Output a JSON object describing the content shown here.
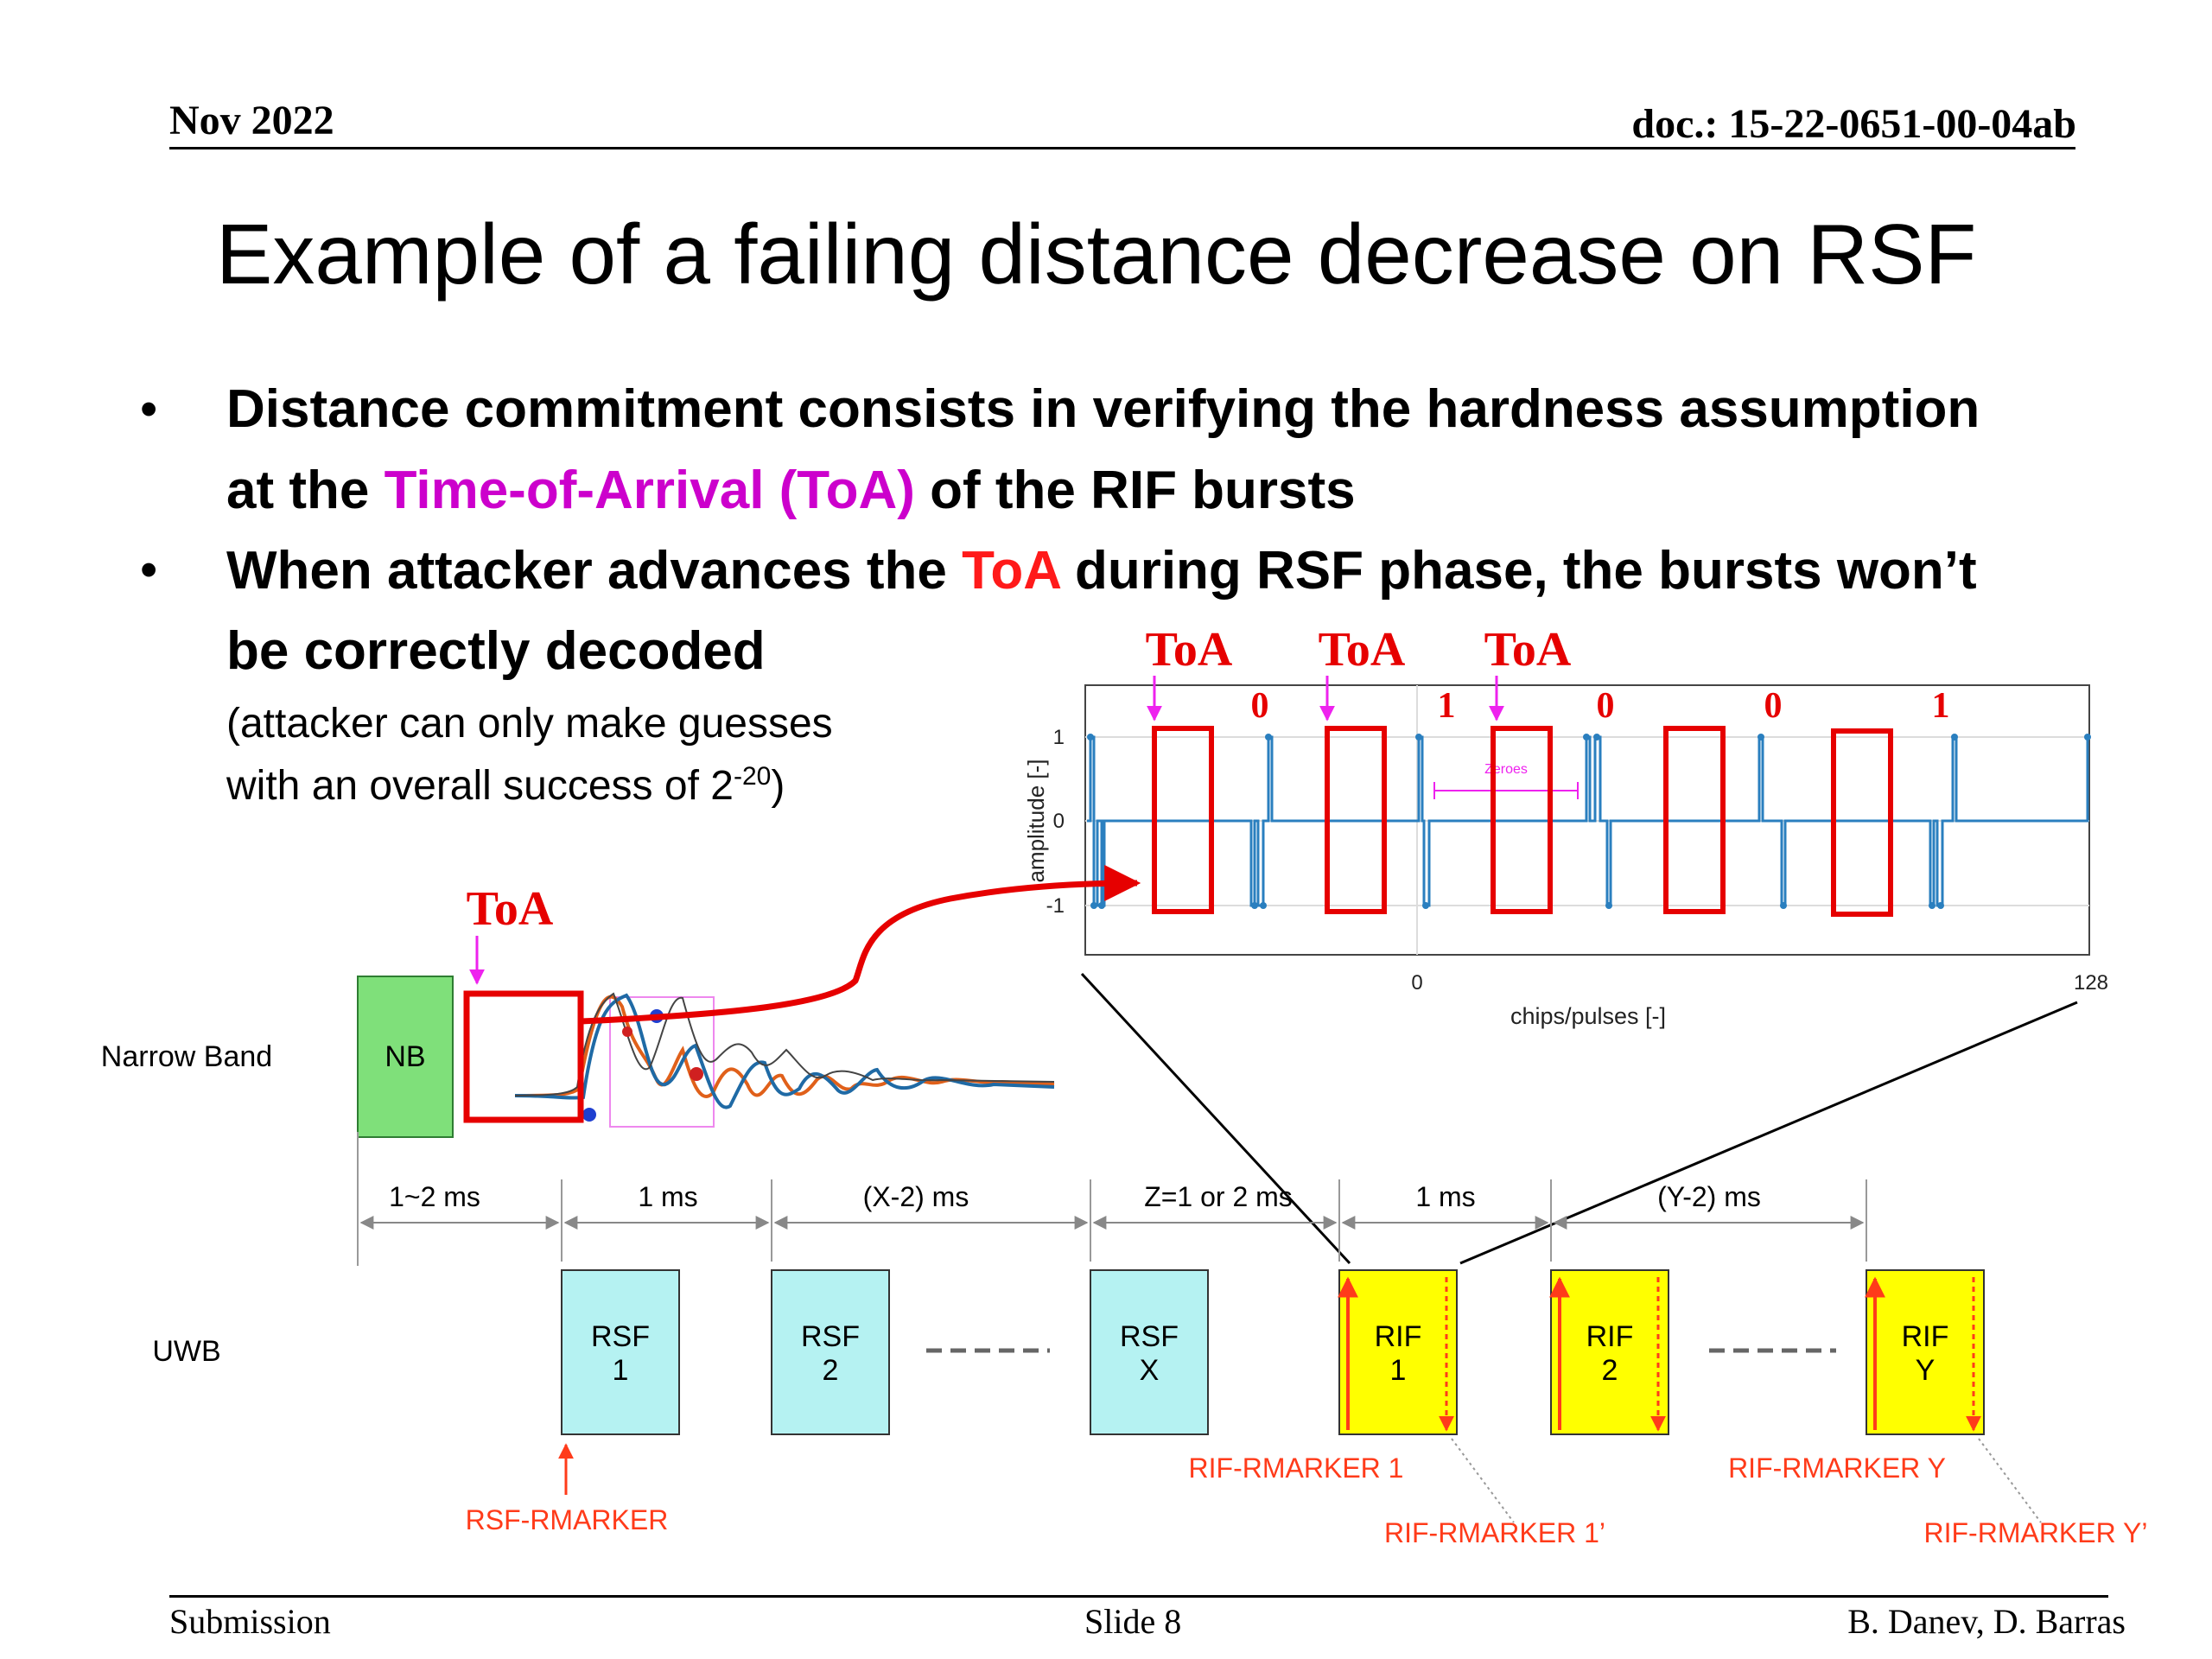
{
  "header": {
    "date": "Nov 2022",
    "doc_id": "doc.: 15-22-0651-00-04ab"
  },
  "title": "Example of a failing distance decrease on RSF",
  "bullets": {
    "b1_line1": "Distance commitment consists in verifying the hardness assumption",
    "b1_line2_pre": "at the ",
    "b1_line2_highlight": "Time-of-Arrival (ToA)",
    "b1_line2_post": " of the RIF bursts",
    "b2_line1_pre": "When attacker advances the ",
    "b2_line1_highlight": "ToA",
    "b2_line1_post": " during RSF phase, the bursts won’t",
    "b2_line2": "be correctly decoded",
    "note_line1": "(attacker can only make guesses",
    "note_line2_pre": "with an overall success of 2",
    "note_line2_sup": "-20",
    "note_line2_post": ")"
  },
  "diagram": {
    "toa_label": "ToA",
    "nb_row_label": "Narrow Band",
    "nb_box_label": "NB",
    "uwb_row_label": "UWB",
    "intervals": [
      "1~2 ms",
      "1 ms",
      "(X-2) ms",
      "Z=1 or 2 ms",
      "1 ms",
      "(Y-2) ms"
    ],
    "rsf_boxes": [
      {
        "l1": "RSF",
        "l2": "1"
      },
      {
        "l1": "RSF",
        "l2": "2"
      },
      {
        "l1": "RSF",
        "l2": "X"
      }
    ],
    "rif_boxes": [
      {
        "l1": "RIF",
        "l2": "1"
      },
      {
        "l1": "RIF",
        "l2": "2"
      },
      {
        "l1": "RIF",
        "l2": "Y"
      }
    ],
    "markers": {
      "rsf": "RSF-RMARKER",
      "rif1": "RIF-RMARKER 1",
      "rif1p": "RIF-RMARKER 1’",
      "rify": "RIF-RMARKER Y",
      "rifyp": "RIF-RMARKER Y’"
    },
    "colors": {
      "nb_fill": "#7fe07a",
      "rsf_fill": "#b5f2f2",
      "rif_fill": "#ffff00",
      "highlight_red": "#e60000",
      "toa_magenta": "#ee22ee"
    }
  },
  "inset_plot": {
    "ylabel": "amplitude [-]",
    "xlabel": "chips/pulses [-]",
    "xticks": [
      "0",
      "128"
    ],
    "yticks": [
      "1",
      "0",
      "-1"
    ],
    "zeroes_label": "Zeroes",
    "bits": [
      "0",
      "1",
      "0",
      "0",
      "1"
    ],
    "toa_labels": [
      "ToA",
      "ToA",
      "ToA"
    ]
  },
  "footer": {
    "left": "Submission",
    "center": "Slide 8",
    "right": "B. Danev, D. Barras"
  }
}
